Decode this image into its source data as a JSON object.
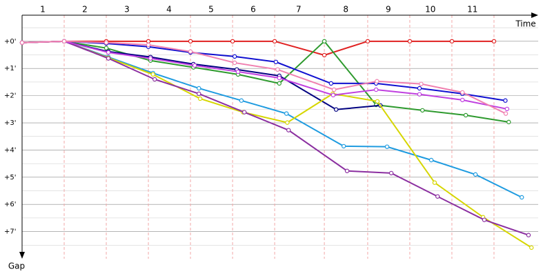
{
  "chart_data": {
    "type": "line",
    "x_label": "Time",
    "y_label": "Gap",
    "xlim": [
      0,
      12.26
    ],
    "ylim": [
      -0.96,
      8.0
    ],
    "xticks": [
      {
        "value": 0.49,
        "label": "1"
      },
      {
        "value": 1.49,
        "label": "2"
      },
      {
        "value": 2.49,
        "label": "3"
      },
      {
        "value": 3.49,
        "label": "4"
      },
      {
        "value": 4.49,
        "label": "5"
      },
      {
        "value": 5.49,
        "label": "6"
      },
      {
        "value": 6.57,
        "label": "7"
      },
      {
        "value": 7.69,
        "label": "8"
      },
      {
        "value": 8.7,
        "label": "9"
      },
      {
        "value": 9.7,
        "label": "10"
      },
      {
        "value": 10.7,
        "label": "11"
      }
    ],
    "yticks": [
      {
        "value": 0,
        "label": "+0'"
      },
      {
        "value": 1,
        "label": "+1'"
      },
      {
        "value": 2,
        "label": "+2'"
      },
      {
        "value": 3,
        "label": "+3'"
      },
      {
        "value": 4,
        "label": "+4'"
      },
      {
        "value": 5,
        "label": "+5'"
      },
      {
        "value": 6,
        "label": "+6'"
      },
      {
        "value": 7,
        "label": "+7'"
      }
    ],
    "xgrid": [
      1,
      2,
      3,
      4,
      5,
      6,
      7.18,
      8.21,
      9.21,
      10.21,
      11.21
    ],
    "xgrid_color": "#f2a8a8",
    "grid": true,
    "series": [
      {
        "color": "#e02020",
        "x": [
          0,
          1,
          2,
          3,
          4,
          5,
          6,
          7.18,
          8.21,
          9.21,
          10.21,
          11.21
        ],
        "values": [
          0.05,
          0,
          0,
          0,
          0,
          0,
          0,
          0.51,
          0,
          0,
          0,
          0
        ]
      },
      {
        "color": "#2e9a2e",
        "x": [
          0,
          1,
          2,
          3.05,
          4.07,
          5.13,
          6.11,
          7.18,
          8.41,
          9.51,
          10.54,
          11.56
        ],
        "values": [
          0.05,
          0,
          0.25,
          0.71,
          0.96,
          1.22,
          1.55,
          0,
          2.34,
          2.54,
          2.72,
          2.97
        ]
      },
      {
        "color": "#1010d0",
        "x": [
          0,
          1,
          2,
          3,
          4,
          5.05,
          6.03,
          7.34,
          8.41,
          9.44,
          10.46,
          11.48
        ],
        "values": [
          0.05,
          0,
          0.08,
          0.2,
          0.41,
          0.56,
          0.76,
          1.55,
          1.55,
          1.73,
          1.93,
          2.18
        ]
      },
      {
        "color": "#000080",
        "x": [
          0,
          1,
          2.05,
          3.05,
          4.07,
          5.1,
          6.11,
          7.46,
          8.51
        ],
        "values": [
          0.05,
          0,
          0.38,
          0.58,
          0.84,
          1.04,
          1.27,
          2.51,
          2.36
        ]
      },
      {
        "color": "#1e9be0",
        "x": [
          0,
          1,
          2.05,
          3.11,
          4.2,
          5.21,
          6.28,
          7.64,
          8.67,
          9.72,
          10.77,
          11.87
        ],
        "values": [
          0.05,
          0,
          0.58,
          1.17,
          1.73,
          2.18,
          2.66,
          3.86,
          3.88,
          4.37,
          4.9,
          5.74
        ]
      },
      {
        "color": "#d6d600",
        "x": [
          0,
          1,
          2.05,
          3.11,
          4.23,
          5.25,
          6.3,
          7.38,
          8.44,
          9.8,
          10.95,
          12.1
        ],
        "values": [
          0.05,
          0,
          0.61,
          1.22,
          2.11,
          2.61,
          2.99,
          1.93,
          2.21,
          5.2,
          6.47,
          7.59
        ]
      },
      {
        "color": "#8b2fa0",
        "x": [
          0,
          1,
          2.05,
          3.15,
          4.2,
          5.28,
          6.33,
          7.72,
          8.77,
          9.87,
          10.98,
          12.03
        ],
        "values": [
          0.05,
          0,
          0.63,
          1.4,
          1.93,
          2.61,
          3.27,
          4.77,
          4.85,
          5.71,
          6.57,
          7.13
        ]
      },
      {
        "color": "#c040e0",
        "x": [
          0,
          1,
          2.05,
          3.05,
          4.1,
          5.13,
          6.11,
          7.39,
          8.41,
          9.44,
          10.46,
          11.52
        ],
        "values": [
          0.05,
          0,
          0.41,
          0.63,
          0.89,
          1.12,
          1.35,
          1.98,
          1.78,
          1.95,
          2.16,
          2.49
        ]
      },
      {
        "color": "#f080b0",
        "x": [
          0,
          1,
          2,
          3,
          4,
          5.05,
          6.07,
          7.41,
          8.43,
          9.48,
          10.46,
          11.49
        ],
        "values": [
          0.05,
          0,
          0.05,
          0.13,
          0.38,
          0.79,
          1.04,
          1.78,
          1.47,
          1.57,
          1.88,
          2.66
        ]
      }
    ]
  }
}
